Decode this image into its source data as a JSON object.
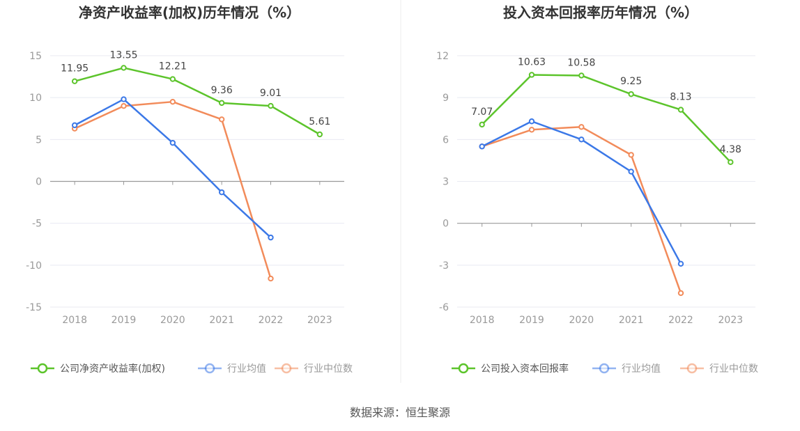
{
  "chart_data": [
    {
      "type": "line",
      "title": "净资产收益率(加权)历年情况（%）",
      "categories": [
        "2018",
        "2019",
        "2020",
        "2021",
        "2022",
        "2023"
      ],
      "ylim": [
        -15,
        15
      ],
      "yticks": [
        "15",
        "10",
        "5",
        "0",
        "-5",
        "-10",
        "-15"
      ],
      "grid": true,
      "legend_position": "bottom",
      "series": [
        {
          "name": "公司净资产收益率(加权)",
          "color": "#5cc42b",
          "values": [
            11.95,
            13.55,
            12.21,
            9.36,
            9.01,
            5.61
          ],
          "labels": [
            "11.95",
            "13.55",
            "12.21",
            "9.36",
            "9.01",
            "5.61"
          ]
        },
        {
          "name": "行业均值",
          "color": "#3b78e7",
          "values": [
            6.7,
            9.8,
            4.6,
            -1.3,
            -6.7,
            null
          ]
        },
        {
          "name": "行业中位数",
          "color": "#f28b5a",
          "values": [
            6.3,
            9.0,
            9.5,
            7.4,
            -11.6,
            null
          ]
        }
      ]
    },
    {
      "type": "line",
      "title": "投入资本回报率历年情况（%）",
      "categories": [
        "2018",
        "2019",
        "2020",
        "2021",
        "2022",
        "2023"
      ],
      "ylim": [
        -6,
        12
      ],
      "yticks": [
        "12",
        "9",
        "6",
        "3",
        "0",
        "-3",
        "-6"
      ],
      "grid": true,
      "legend_position": "bottom",
      "series": [
        {
          "name": "公司投入资本回报率",
          "color": "#5cc42b",
          "values": [
            7.07,
            10.63,
            10.58,
            9.25,
            8.13,
            4.38
          ],
          "labels": [
            "7.07",
            "10.63",
            "10.58",
            "9.25",
            "8.13",
            "4.38"
          ]
        },
        {
          "name": "行业均值",
          "color": "#3b78e7",
          "values": [
            5.5,
            7.3,
            6.0,
            3.7,
            -2.9,
            null
          ]
        },
        {
          "name": "行业中位数",
          "color": "#f28b5a",
          "values": [
            5.5,
            6.7,
            6.9,
            4.9,
            -5.0,
            null
          ]
        }
      ]
    }
  ],
  "source_text": "数据来源：恒生聚源"
}
